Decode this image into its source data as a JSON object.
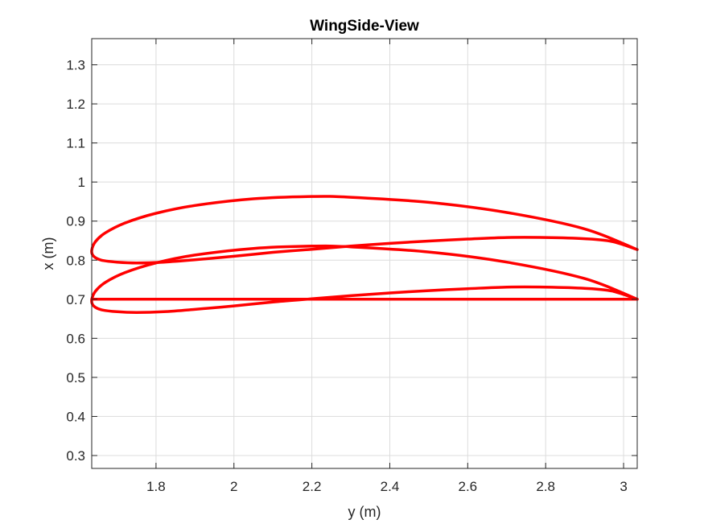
{
  "chart_data": {
    "type": "line",
    "title": "WingSide-View",
    "xlabel": "y (m)",
    "ylabel": "x (m)",
    "xlim": [
      1.635,
      3.035
    ],
    "ylim": [
      0.267,
      1.367
    ],
    "xticks": [
      1.8,
      2,
      2.2,
      2.4,
      2.6,
      2.8,
      3
    ],
    "xtick_labels": [
      "1.8",
      "2",
      "2.2",
      "2.4",
      "2.6",
      "2.8",
      "3"
    ],
    "yticks": [
      0.3,
      0.4,
      0.5,
      0.6,
      0.7,
      0.8,
      0.9,
      1,
      1.1,
      1.2,
      1.3
    ],
    "ytick_labels": [
      "0.3",
      "0.4",
      "0.5",
      "0.6",
      "0.7",
      "0.8",
      "0.9",
      "1",
      "1.1",
      "1.2",
      "1.3"
    ],
    "grid": true,
    "line_color": "#ff0000",
    "series": [
      {
        "x": [
          3.035,
          2.9,
          2.7,
          2.5,
          2.3,
          2.2,
          2.05,
          1.9,
          1.8,
          1.72,
          1.67,
          1.645,
          1.635,
          1.64,
          1.66,
          1.7,
          1.75,
          1.82,
          1.9,
          2.0,
          2.1,
          2.2,
          2.3,
          2.4,
          2.5,
          2.6,
          2.7,
          2.8,
          2.9,
          2.97,
          3.035
        ],
        "y": [
          0.827,
          0.88,
          0.922,
          0.948,
          0.961,
          0.963,
          0.957,
          0.94,
          0.92,
          0.895,
          0.87,
          0.848,
          0.825,
          0.81,
          0.8,
          0.795,
          0.793,
          0.795,
          0.801,
          0.81,
          0.82,
          0.828,
          0.836,
          0.843,
          0.849,
          0.854,
          0.858,
          0.858,
          0.855,
          0.848,
          0.827
        ]
      },
      {
        "x": [
          3.035,
          2.9,
          2.7,
          2.5,
          2.3,
          2.2,
          2.05,
          1.9,
          1.8,
          1.72,
          1.67,
          1.645,
          1.635,
          1.64,
          1.66,
          1.7,
          1.75,
          1.82,
          1.9,
          2.0,
          2.1,
          2.2,
          2.3,
          2.4,
          2.5,
          2.6,
          2.7,
          2.8,
          2.9,
          2.97,
          3.035
        ],
        "y": [
          0.7,
          0.753,
          0.795,
          0.821,
          0.834,
          0.836,
          0.83,
          0.813,
          0.793,
          0.768,
          0.743,
          0.721,
          0.698,
          0.683,
          0.673,
          0.668,
          0.666,
          0.668,
          0.674,
          0.683,
          0.693,
          0.701,
          0.709,
          0.716,
          0.722,
          0.727,
          0.731,
          0.731,
          0.728,
          0.721,
          0.7
        ]
      },
      {
        "x": [
          1.635,
          3.035
        ],
        "y": [
          0.7,
          0.7
        ]
      }
    ]
  }
}
